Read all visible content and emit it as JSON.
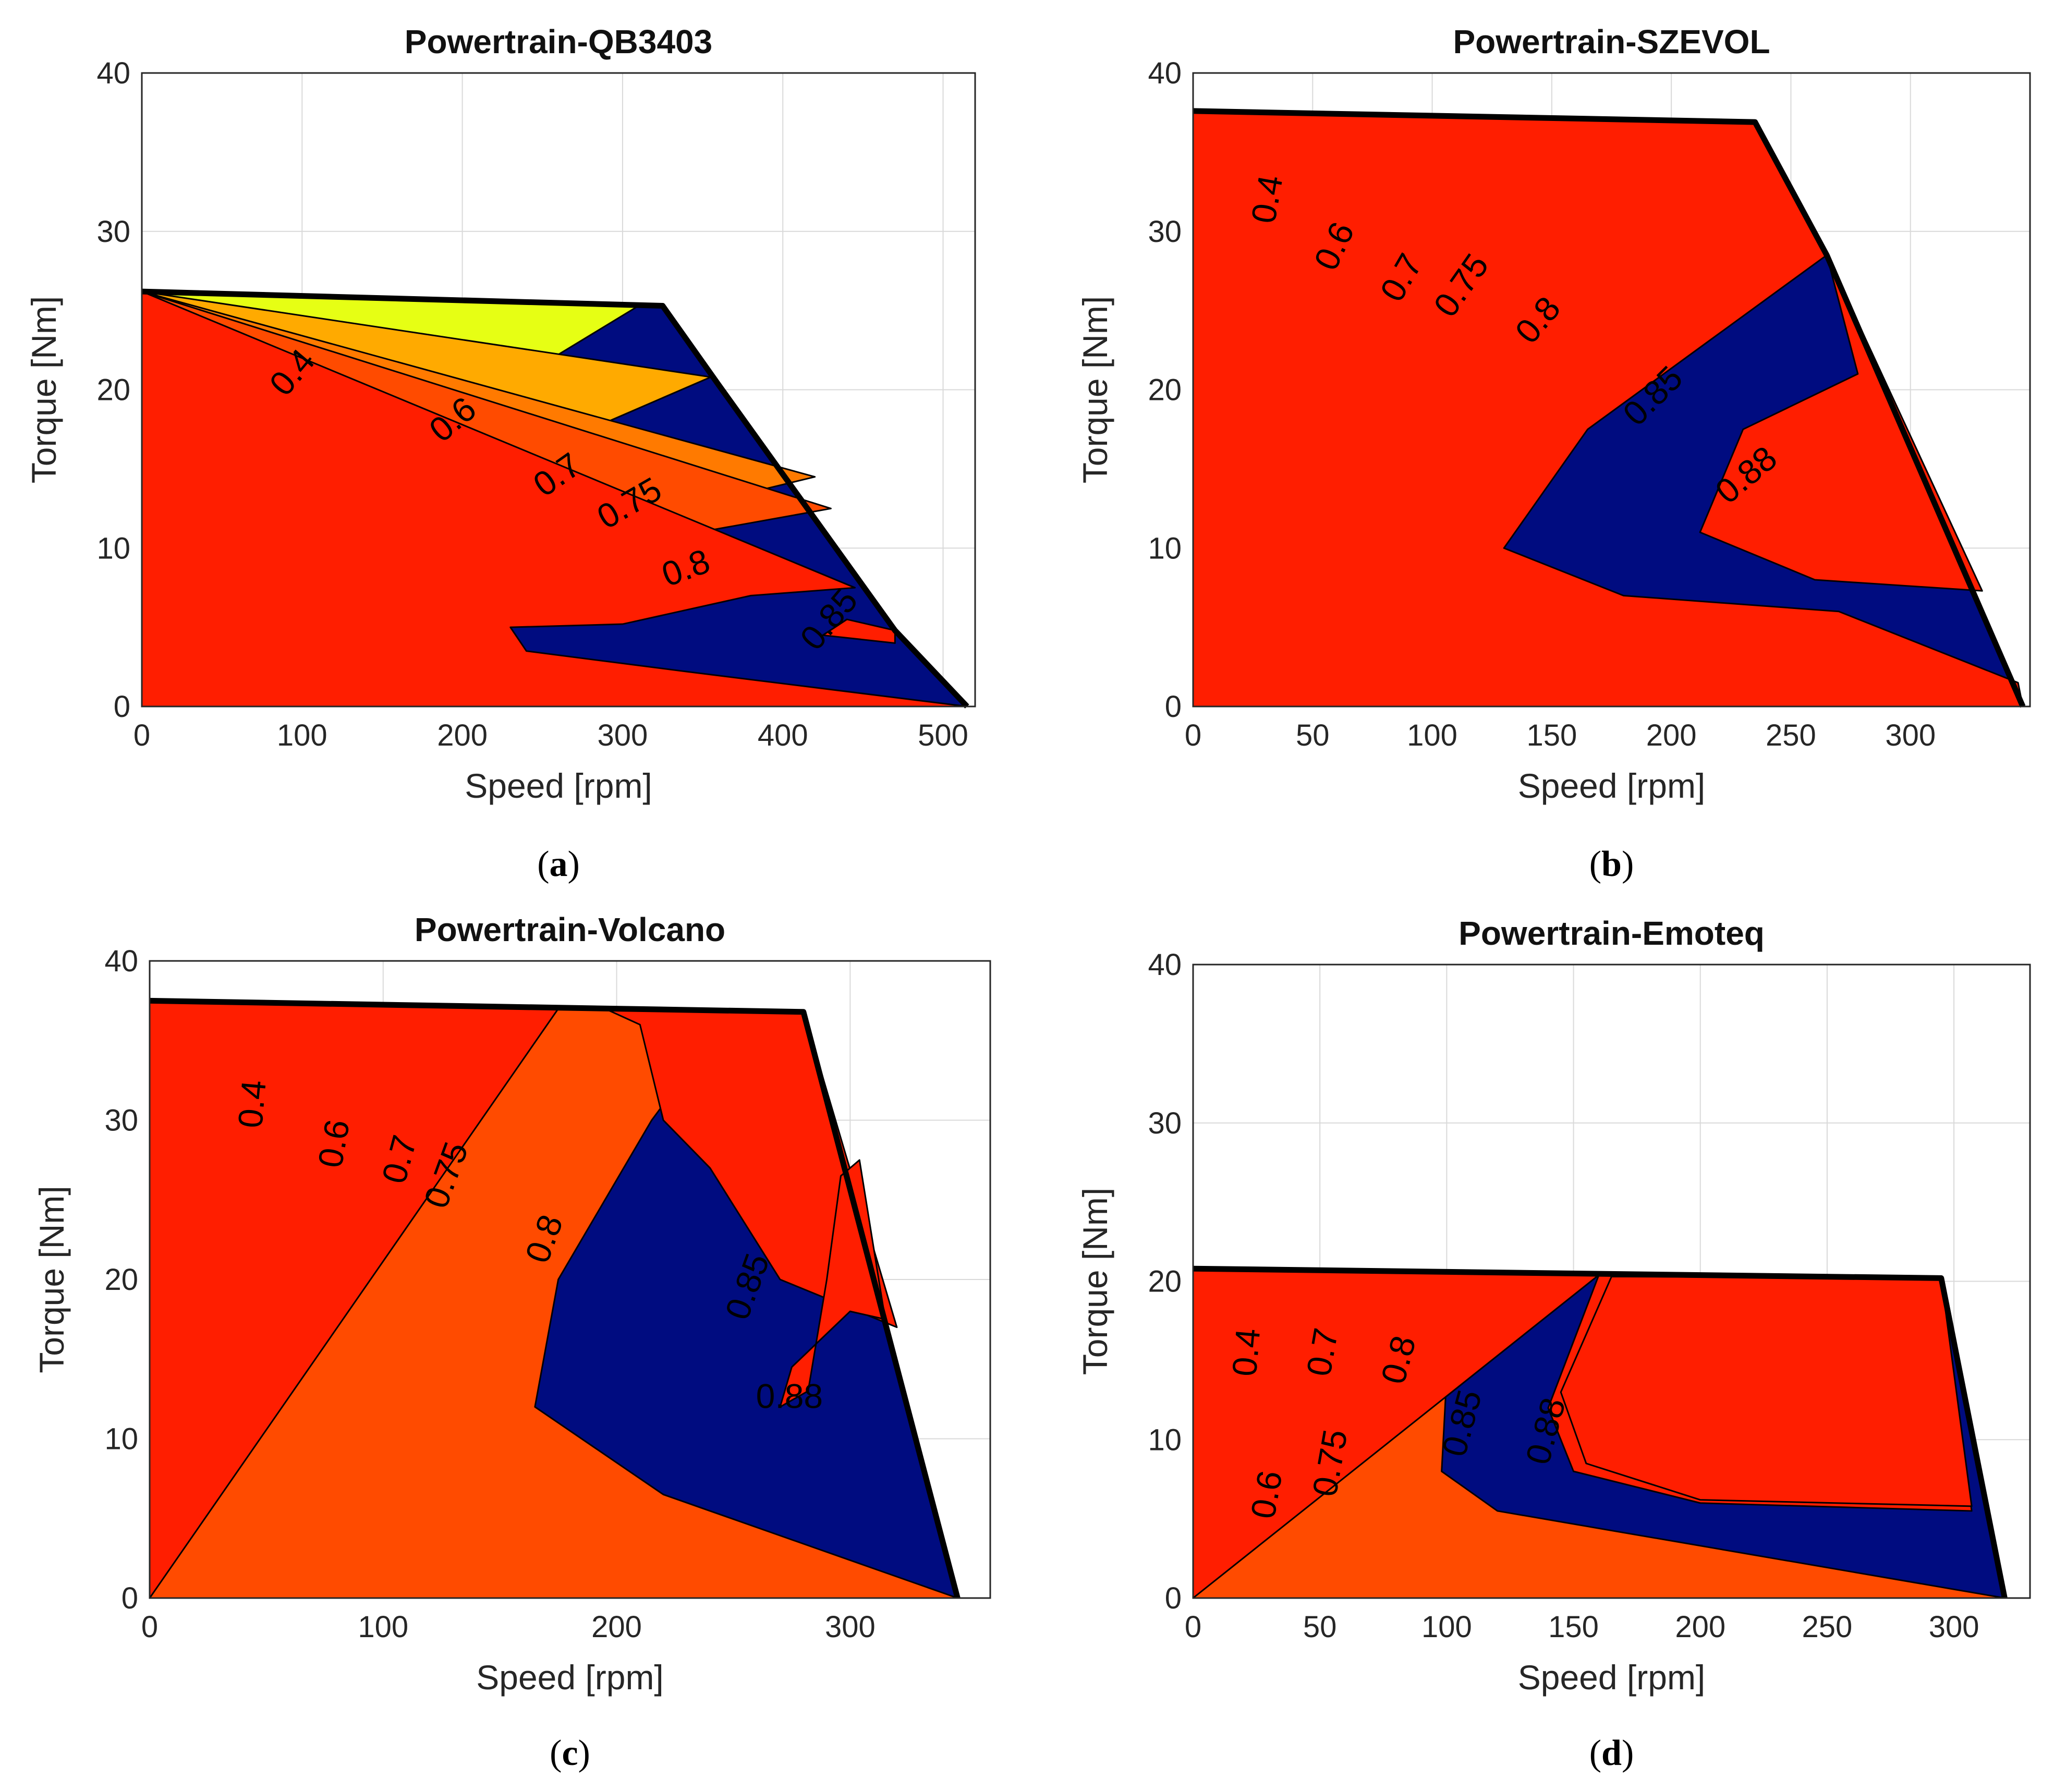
{
  "colors": {
    "levels": [
      "#000c80",
      "#1effe0",
      "#e6ff14",
      "#ffaa00",
      "#ff7a00",
      "#ff4b00",
      "#ff1e00"
    ],
    "boundary": "#000000",
    "grid": "#d9d9d9"
  },
  "chart_data": [
    {
      "type": "contour",
      "panel_label": "a",
      "title": "Powertrain-QB3403",
      "xlabel": "Speed [rpm]",
      "ylabel": "Torque [Nm]",
      "xlim": [
        0,
        520
      ],
      "ylim": [
        0,
        40
      ],
      "xticks": [
        0,
        100,
        200,
        300,
        400,
        500
      ],
      "yticks": [
        0,
        10,
        20,
        30,
        40
      ],
      "grid": true,
      "contour_levels": [
        "0.4",
        "0.6",
        "0.7",
        "0.75",
        "0.8",
        "0.85"
      ],
      "envelope": [
        [
          0,
          26.2
        ],
        [
          325,
          25.3
        ],
        [
          360,
          20.3
        ],
        [
          470,
          4.8
        ],
        [
          515,
          0
        ]
      ],
      "regions": [
        [
          [
            0,
            0
          ],
          [
            0,
            26.2
          ],
          [
            125,
            25.6
          ],
          [
            80,
            19
          ],
          [
            40,
            12.5
          ],
          [
            30,
            6.5
          ],
          [
            30,
            1.5
          ],
          [
            515,
            0
          ]
        ],
        [
          [
            0,
            0
          ],
          [
            0,
            26.2
          ],
          [
            310,
            25.3
          ],
          [
            240,
            21
          ],
          [
            180,
            16.5
          ],
          [
            120,
            11.5
          ],
          [
            70,
            5.5
          ],
          [
            60,
            1.8
          ],
          [
            515,
            0
          ]
        ],
        [
          [
            0,
            0
          ],
          [
            0,
            26.2
          ],
          [
            355,
            20.8
          ],
          [
            250,
            16.2
          ],
          [
            180,
            11.5
          ],
          [
            100,
            3.5
          ],
          [
            95,
            1.5
          ],
          [
            515,
            0
          ]
        ],
        [
          [
            0,
            0
          ],
          [
            0,
            26.2
          ],
          [
            420,
            14.5
          ],
          [
            330,
            12.3
          ],
          [
            240,
            9.5
          ],
          [
            140,
            3.5
          ],
          [
            130,
            1.2
          ],
          [
            515,
            0
          ]
        ],
        [
          [
            0,
            0
          ],
          [
            0,
            26.2
          ],
          [
            430,
            12.5
          ],
          [
            320,
            10.5
          ],
          [
            240,
            7.0
          ],
          [
            145,
            4.0
          ],
          [
            155,
            1.3
          ],
          [
            515,
            0
          ]
        ],
        [
          [
            0,
            0
          ],
          [
            0,
            26.2
          ],
          [
            445,
            7.5
          ],
          [
            380,
            7.0
          ],
          [
            300,
            5.2
          ],
          [
            230,
            5.0
          ],
          [
            240,
            3.5
          ],
          [
            340,
            2.2
          ],
          [
            515,
            0
          ]
        ],
        [
          [
            470,
            4.8
          ],
          [
            440,
            5.5
          ],
          [
            425,
            4.5
          ],
          [
            470,
            4.0
          ]
        ]
      ],
      "labels": [
        {
          "text": "0.4",
          "x": 95,
          "y": 21,
          "angle": -50
        },
        {
          "text": "0.6",
          "x": 195,
          "y": 18,
          "angle": -40
        },
        {
          "text": "0.7",
          "x": 260,
          "y": 14.5,
          "angle": -35
        },
        {
          "text": "0.75",
          "x": 305,
          "y": 12.7,
          "angle": -30
        },
        {
          "text": "0.8",
          "x": 340,
          "y": 8.6,
          "angle": -20
        },
        {
          "text": "0.85",
          "x": 430,
          "y": 5.4,
          "angle": -50
        }
      ]
    },
    {
      "type": "contour",
      "panel_label": "b",
      "title": "Powertrain-SZEVOL",
      "xlabel": "Speed [rpm]",
      "ylabel": "Torque [Nm]",
      "xlim": [
        0,
        350
      ],
      "ylim": [
        0,
        40
      ],
      "xticks": [
        0,
        50,
        100,
        150,
        200,
        250,
        300
      ],
      "yticks": [
        0,
        10,
        20,
        30,
        40
      ],
      "grid": true,
      "contour_levels": [
        "0.4",
        "0.6",
        "0.7",
        "0.75",
        "0.8",
        "0.85",
        "0.88"
      ],
      "envelope": [
        [
          0,
          37.6
        ],
        [
          235,
          36.9
        ],
        [
          265,
          28.5
        ],
        [
          347,
          0
        ]
      ],
      "regions": [
        [
          [
            0,
            0
          ],
          [
            0,
            37.6
          ],
          [
            35,
            37.5
          ],
          [
            28,
            25
          ],
          [
            22,
            10
          ],
          [
            20,
            3
          ],
          [
            25,
            1.5
          ],
          [
            347,
            0
          ]
        ],
        [
          [
            0,
            0
          ],
          [
            0,
            37.6
          ],
          [
            78,
            37.4
          ],
          [
            65,
            34
          ],
          [
            55,
            28
          ],
          [
            42,
            15
          ],
          [
            37,
            7
          ],
          [
            42,
            2.2
          ],
          [
            347,
            0
          ]
        ],
        [
          [
            0,
            0
          ],
          [
            0,
            37.6
          ],
          [
            118,
            37.3
          ],
          [
            100,
            33
          ],
          [
            80,
            28
          ],
          [
            65,
            20
          ],
          [
            57,
            8
          ],
          [
            62,
            3.3
          ],
          [
            347,
            0
          ]
        ],
        [
          [
            0,
            0
          ],
          [
            0,
            37.6
          ],
          [
            158,
            37.2
          ],
          [
            125,
            32.5
          ],
          [
            100,
            27.5
          ],
          [
            82,
            20
          ],
          [
            73,
            10
          ],
          [
            78,
            4.5
          ],
          [
            347,
            0
          ]
        ],
        [
          [
            0,
            0
          ],
          [
            0,
            37.6
          ],
          [
            235,
            36.9
          ],
          [
            185,
            31
          ],
          [
            145,
            25.5
          ],
          [
            100,
            17
          ],
          [
            78,
            9
          ],
          [
            100,
            5.5
          ],
          [
            200,
            4.5
          ],
          [
            347,
            0
          ]
        ],
        [
          [
            0,
            0
          ],
          [
            0,
            37.6
          ],
          [
            235,
            36.9
          ],
          [
            265,
            28.5
          ],
          [
            215,
            23
          ],
          [
            165,
            17.5
          ],
          [
            130,
            10
          ],
          [
            180,
            7.0
          ],
          [
            270,
            6.0
          ],
          [
            345,
            1.5
          ],
          [
            347,
            0
          ]
        ],
        [
          [
            265,
            28.5
          ],
          [
            278,
            21
          ],
          [
            230,
            17.5
          ],
          [
            212,
            11
          ],
          [
            260,
            8.0
          ],
          [
            330,
            7.3
          ]
        ]
      ],
      "labels": [
        {
          "text": "0.4",
          "x": 32,
          "y": 32,
          "angle": -80
        },
        {
          "text": "0.6",
          "x": 60,
          "y": 29,
          "angle": -65
        },
        {
          "text": "0.7",
          "x": 88,
          "y": 27,
          "angle": -60
        },
        {
          "text": "0.75",
          "x": 113,
          "y": 26.5,
          "angle": -55
        },
        {
          "text": "0.8",
          "x": 145,
          "y": 24.3,
          "angle": -50
        },
        {
          "text": "0.85",
          "x": 193,
          "y": 19.5,
          "angle": -45
        },
        {
          "text": "0.88",
          "x": 232,
          "y": 14.5,
          "angle": -40
        }
      ]
    },
    {
      "type": "contour",
      "panel_label": "c",
      "title": "Powertrain-Volcano",
      "xlabel": "Speed [rpm]",
      "ylabel": "Torque [Nm]",
      "xlim": [
        0,
        360
      ],
      "ylim": [
        0,
        40
      ],
      "xticks": [
        0,
        100,
        200,
        300
      ],
      "yticks": [
        0,
        10,
        20,
        30,
        40
      ],
      "grid": true,
      "contour_levels": [
        "0.4",
        "0.6",
        "0.7",
        "0.75",
        "0.8",
        "0.85",
        "0.88"
      ],
      "envelope": [
        [
          0,
          37.5
        ],
        [
          280,
          36.8
        ],
        [
          346,
          0
        ]
      ],
      "regions": [
        [
          [
            0,
            0
          ],
          [
            0,
            37.5
          ],
          [
            42,
            37.4
          ],
          [
            35,
            25
          ],
          [
            30,
            8
          ],
          [
            35,
            2.5
          ],
          [
            60,
            2
          ],
          [
            346,
            0
          ]
        ],
        [
          [
            0,
            0
          ],
          [
            0,
            37.5
          ],
          [
            85,
            37.3
          ],
          [
            68,
            30
          ],
          [
            55,
            18
          ],
          [
            55,
            6
          ],
          [
            80,
            2.8
          ],
          [
            346,
            0
          ]
        ],
        [
          [
            0,
            0
          ],
          [
            0,
            37.5
          ],
          [
            130,
            37.2
          ],
          [
            108,
            30
          ],
          [
            95,
            20
          ],
          [
            90,
            10
          ],
          [
            100,
            4.5
          ],
          [
            346,
            0
          ]
        ],
        [
          [
            0,
            0
          ],
          [
            0,
            37.5
          ],
          [
            172,
            37.1
          ],
          [
            150,
            30
          ],
          [
            130,
            20
          ],
          [
            125,
            10
          ],
          [
            150,
            5.5
          ],
          [
            346,
            0
          ]
        ],
        [
          [
            0,
            0
          ],
          [
            0,
            37.5
          ],
          [
            250,
            36.9
          ],
          [
            215,
            30
          ],
          [
            175,
            20
          ],
          [
            165,
            12
          ],
          [
            220,
            6.5
          ],
          [
            346,
            0
          ]
        ],
        [
          [
            0,
            0
          ],
          [
            0,
            37.5
          ],
          [
            280,
            36.8
          ],
          [
            320,
            17.0
          ],
          [
            270,
            20
          ],
          [
            240,
            27
          ],
          [
            220,
            30
          ],
          [
            210,
            36
          ],
          [
            195,
            37
          ],
          [
            175,
            37.0
          ]
        ],
        [
          [
            296,
            26.5
          ],
          [
            304,
            27.5
          ],
          [
            315,
            17.5
          ],
          [
            300,
            18
          ],
          [
            275,
            14.5
          ],
          [
            270,
            12
          ],
          [
            282,
            13
          ],
          [
            290,
            20
          ]
        ]
      ],
      "labels": [
        {
          "text": "0.4",
          "x": 45,
          "y": 31,
          "angle": -85
        },
        {
          "text": "0.6",
          "x": 80,
          "y": 28.5,
          "angle": -80
        },
        {
          "text": "0.7",
          "x": 108,
          "y": 27.5,
          "angle": -75
        },
        {
          "text": "0.75",
          "x": 128,
          "y": 26.5,
          "angle": -70
        },
        {
          "text": "0.8",
          "x": 170,
          "y": 22.5,
          "angle": -70
        },
        {
          "text": "0.85",
          "x": 257,
          "y": 19.5,
          "angle": -70
        },
        {
          "text": "0.88",
          "x": 274,
          "y": 12.5,
          "angle": 0
        }
      ]
    },
    {
      "type": "contour",
      "panel_label": "d",
      "title": "Powertrain-Emoteq",
      "xlabel": "Speed [rpm]",
      "ylabel": "Torque [Nm]",
      "xlim": [
        0,
        330
      ],
      "ylim": [
        0,
        40
      ],
      "xticks": [
        0,
        50,
        100,
        150,
        200,
        250,
        300
      ],
      "yticks": [
        0,
        10,
        20,
        30,
        40
      ],
      "grid": true,
      "contour_levels": [
        "0.4",
        "0.6",
        "0.7",
        "0.75",
        "0.8",
        "0.85",
        "0.88"
      ],
      "envelope": [
        [
          0,
          20.8
        ],
        [
          295,
          20.2
        ],
        [
          320,
          0
        ]
      ],
      "regions": [
        [
          [
            0,
            0
          ],
          [
            0,
            20.8
          ],
          [
            25,
            20.7
          ],
          [
            22,
            10
          ],
          [
            22,
            4
          ],
          [
            30,
            1.5
          ],
          [
            320,
            0
          ]
        ],
        [
          [
            0,
            0
          ],
          [
            0,
            20.8
          ],
          [
            42,
            20.7
          ],
          [
            35,
            12
          ],
          [
            33,
            5
          ],
          [
            45,
            2.5
          ],
          [
            320,
            0
          ]
        ],
        [
          [
            0,
            0
          ],
          [
            0,
            20.8
          ],
          [
            62,
            20.6
          ],
          [
            50,
            14
          ],
          [
            48,
            6
          ],
          [
            60,
            3.5
          ],
          [
            320,
            0
          ]
        ],
        [
          [
            0,
            0
          ],
          [
            0,
            20.8
          ],
          [
            82,
            20.6
          ],
          [
            68,
            14
          ],
          [
            66,
            7
          ],
          [
            80,
            4.5
          ],
          [
            320,
            0
          ]
        ],
        [
          [
            0,
            0
          ],
          [
            0,
            20.8
          ],
          [
            120,
            20.4
          ],
          [
            100,
            14
          ],
          [
            98,
            8
          ],
          [
            120,
            5.5
          ],
          [
            320,
            0
          ]
        ],
        [
          [
            0,
            0
          ],
          [
            0,
            20.8
          ],
          [
            295,
            20.2
          ],
          [
            307,
            5.5
          ],
          [
            200,
            6.0
          ],
          [
            150,
            8
          ],
          [
            140,
            12
          ],
          [
            160,
            20.4
          ]
        ],
        [
          [
            295,
            20.2
          ],
          [
            307,
            5.8
          ],
          [
            200,
            6.2
          ],
          [
            155,
            8.5
          ],
          [
            145,
            13
          ],
          [
            165,
            20.3
          ]
        ]
      ],
      "labels": [
        {
          "text": "0.4",
          "x": 22,
          "y": 15.5,
          "angle": -85
        },
        {
          "text": "0.6",
          "x": 30,
          "y": 6.5,
          "angle": -80
        },
        {
          "text": "0.7",
          "x": 52,
          "y": 15.5,
          "angle": -80
        },
        {
          "text": "0.75",
          "x": 55,
          "y": 8.5,
          "angle": -80
        },
        {
          "text": "0.8",
          "x": 82,
          "y": 15.0,
          "angle": -75
        },
        {
          "text": "0.85",
          "x": 107,
          "y": 11.0,
          "angle": -75
        },
        {
          "text": "0.88",
          "x": 140,
          "y": 10.5,
          "angle": -75
        }
      ]
    }
  ]
}
